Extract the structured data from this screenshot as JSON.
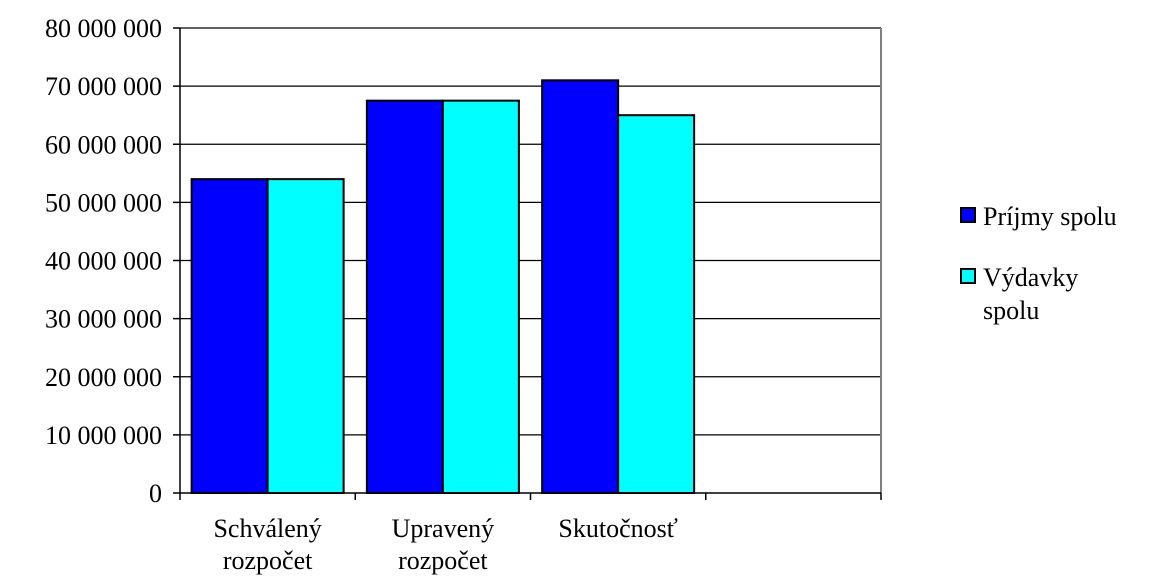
{
  "chart_data": {
    "type": "bar",
    "title": "",
    "xlabel": "",
    "ylabel": "",
    "categories": [
      [
        "Schválený",
        "rozpočet"
      ],
      [
        "Upravený",
        "rozpočet"
      ],
      [
        "Skutočnosť"
      ],
      []
    ],
    "series": [
      {
        "name": "Príjmy spolu",
        "color": "#0000FF",
        "values": [
          54000000,
          67500000,
          71000000,
          null
        ]
      },
      {
        "name": "Výdavky spolu",
        "color": "#00FFFF",
        "values": [
          54000000,
          67500000,
          65000000,
          null
        ]
      }
    ],
    "ylim": [
      0,
      80000000
    ],
    "yticks": [
      0,
      10000000,
      20000000,
      30000000,
      40000000,
      50000000,
      60000000,
      70000000,
      80000000
    ],
    "ytick_labels": [
      "0",
      "10 000 000",
      "20 000 000",
      "30 000 000",
      "40 000 000",
      "50 000 000",
      "60 000 000",
      "70 000 000",
      "80 000 000"
    ],
    "grid": true,
    "legend": {
      "position": "right",
      "entries": [
        {
          "lines": [
            "Príjmy spolu"
          ],
          "color": "#0000FF"
        },
        {
          "lines": [
            "Výdavky",
            "spolu"
          ],
          "color": "#00FFFF"
        }
      ]
    }
  }
}
